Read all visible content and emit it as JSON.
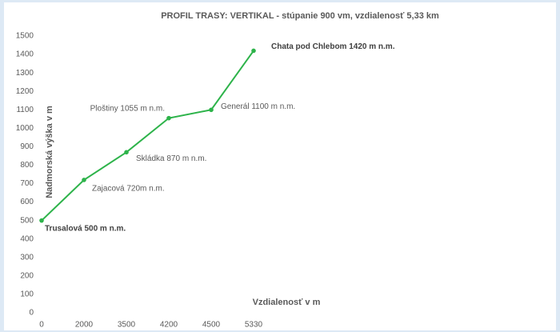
{
  "chart_data": {
    "type": "line",
    "title": "PROFIL TRASY: VERTIKAL - stúpanie 900 vm, vzdialenosť 5,33 km",
    "x_label": "Vzdialenosť v m",
    "y_label": "Nadmorská výška v m",
    "categories": [
      "0",
      "2000",
      "3500",
      "4200",
      "4500",
      "5330"
    ],
    "values": [
      500,
      720,
      870,
      1055,
      1100,
      1420
    ],
    "color": "#2db34a",
    "ylim": [
      0,
      1500
    ],
    "yticks": [
      0,
      100,
      200,
      300,
      400,
      500,
      600,
      700,
      800,
      900,
      1000,
      1100,
      1200,
      1300,
      1400,
      1500
    ],
    "grid": false,
    "annotations": [
      {
        "text": "Trusalová 500 m n.m.",
        "bold": true
      },
      {
        "text": "Zajacová 720m n.m.",
        "bold": false
      },
      {
        "text": "Skládka 870 m n.m.",
        "bold": false
      },
      {
        "text": "Ploštiny 1055 m n.m.",
        "bold": false
      },
      {
        "text": "Generál 1100 m n.m.",
        "bold": false
      },
      {
        "text": "Chata pod Chlebom 1420 m n.m.",
        "bold": true
      }
    ]
  }
}
